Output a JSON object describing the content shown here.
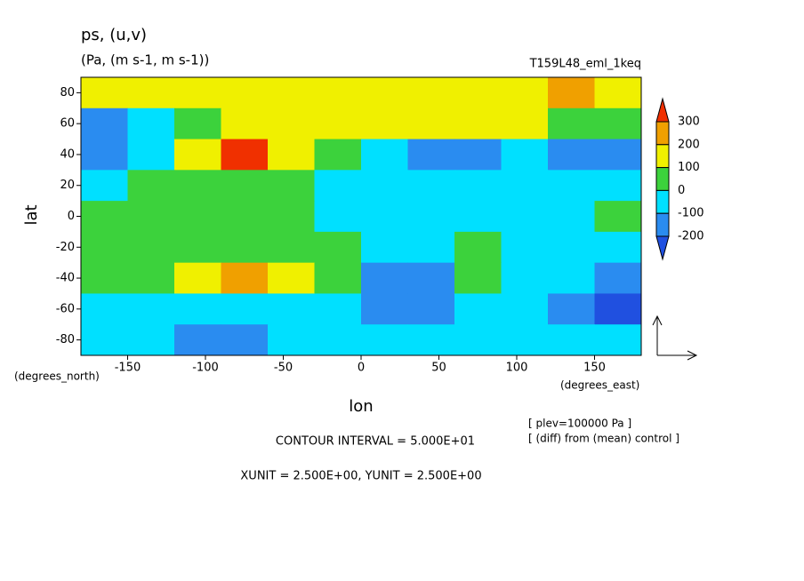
{
  "chart_data": {
    "type": "contour",
    "title": "ps, (u,v)",
    "subtitle": "(Pa, (m s-1, m s-1))",
    "run_label": "T159L48_eml_1keq",
    "x_label": "lon",
    "y_label": "lat",
    "x_unit_label": "(degrees_east)",
    "y_unit_label": "(degrees_north)",
    "notes": [
      "[ plev=100000 Pa ]",
      "[ (diff) from (mean) control ]"
    ],
    "contour_interval": "CONTOUR INTERVAL = 5.000E+01",
    "vector_units": "XUNIT = 2.500E+00, YUNIT = 2.500E+00",
    "xlim": [
      -180,
      180
    ],
    "ylim": [
      -90,
      90
    ],
    "xticks": [
      -150,
      -100,
      -50,
      0,
      50,
      100,
      150
    ],
    "yticks": [
      -80,
      -60,
      -40,
      -20,
      0,
      20,
      40,
      60,
      80
    ],
    "colorbar": {
      "levels": [
        -200,
        -100,
        0,
        100,
        200,
        300
      ],
      "colors": [
        "#2050e0",
        "#2a8cf0",
        "#00e0ff",
        "#3cd23c",
        "#f0f000",
        "#f0a000",
        "#f03000"
      ]
    },
    "field": {
      "lons": [
        -165,
        -135,
        -105,
        -75,
        -45,
        -15,
        15,
        45,
        75,
        105,
        135,
        165
      ],
      "lats": [
        80,
        60,
        40,
        20,
        0,
        -20,
        -40,
        -60,
        -80
      ],
      "values": [
        [
          150,
          150,
          120,
          150,
          150,
          150,
          150,
          120,
          150,
          120,
          200,
          150
        ],
        [
          -120,
          -50,
          50,
          150,
          150,
          150,
          150,
          130,
          150,
          120,
          80,
          50
        ],
        [
          -120,
          -50,
          150,
          320,
          150,
          50,
          -50,
          -120,
          -120,
          -80,
          -120,
          -150
        ],
        [
          -50,
          50,
          50,
          50,
          50,
          -30,
          -50,
          -80,
          -50,
          -50,
          -60,
          -50
        ],
        [
          50,
          50,
          50,
          50,
          50,
          -30,
          -50,
          -50,
          -50,
          -50,
          -50,
          50
        ],
        [
          50,
          50,
          50,
          80,
          80,
          50,
          -50,
          -80,
          50,
          -30,
          -50,
          -50
        ],
        [
          50,
          80,
          150,
          250,
          150,
          50,
          -120,
          -120,
          50,
          -80,
          -50,
          -120
        ],
        [
          -50,
          -80,
          -50,
          -50,
          -50,
          -80,
          -150,
          -150,
          -100,
          -80,
          -150,
          -220
        ],
        [
          -50,
          -50,
          -150,
          -150,
          -80,
          -50,
          -50,
          -50,
          -50,
          -50,
          -50,
          -50
        ]
      ]
    }
  }
}
